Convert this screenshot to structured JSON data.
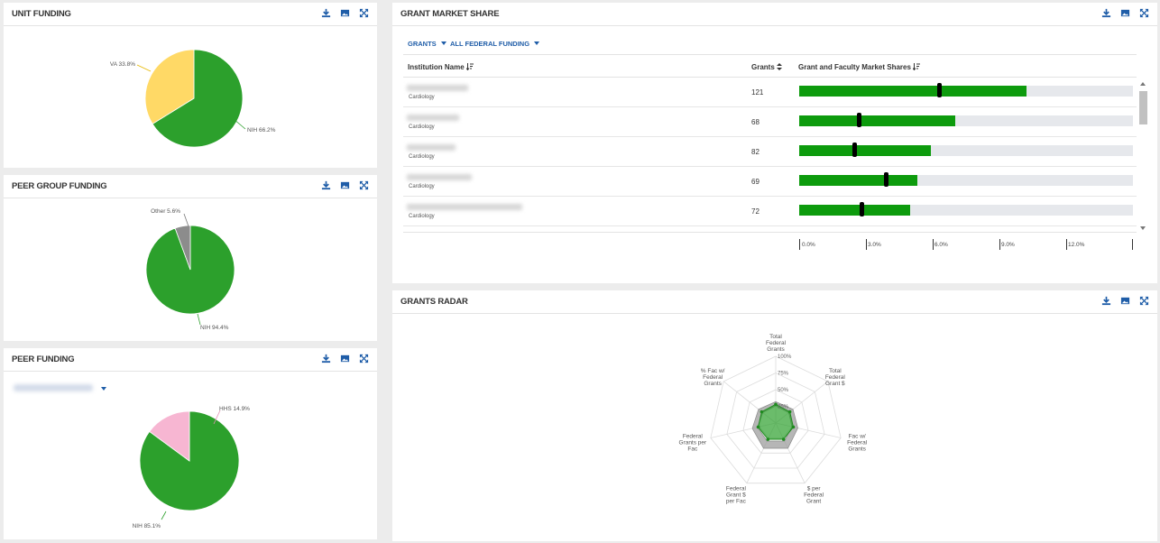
{
  "panels": {
    "unit_funding": {
      "title": "Unit Funding"
    },
    "peer_group_funding": {
      "title": "Peer Group Funding"
    },
    "peer_funding": {
      "title": "Peer Funding"
    },
    "grant_market_share": {
      "title": "Grant Market Share"
    },
    "grants_radar": {
      "title": "Grants Radar"
    }
  },
  "tool_icons": [
    "download-icon",
    "image-icon",
    "expand-icon"
  ],
  "colors": {
    "nih": "#2ca02c",
    "va": "#ffd966",
    "other": "#8c8c8c",
    "hhs": "#f7b6d2",
    "bar": "#0d9b0d",
    "link": "#1f5da8"
  },
  "unit_pie": {
    "slices": [
      {
        "label": "NIH 66.2%",
        "value": 66.2
      },
      {
        "label": "VA 33.8%",
        "value": 33.8
      }
    ]
  },
  "peer_group_pie": {
    "slices": [
      {
        "label": "NIH 94.4%",
        "value": 94.4
      },
      {
        "label": "Other 5.6%",
        "value": 5.6
      }
    ]
  },
  "peer_pie": {
    "slices": [
      {
        "label": "NIH 85.1%",
        "value": 85.1
      },
      {
        "label": "HHS 14.9%",
        "value": 14.9
      }
    ]
  },
  "market_share": {
    "filters": {
      "metric": "Grants",
      "funding": "All Federal Funding"
    },
    "columns": {
      "institution": "Institution Name",
      "grants": "Grants",
      "share": "Grant and Faculty Market Shares"
    },
    "axis_ticks": [
      "0.0%",
      "3.0%",
      "6.0%",
      "9.0%",
      "12.0%"
    ],
    "axis_max_pct": 15,
    "rows": [
      {
        "department": "Cardiology",
        "grants": "121",
        "grant_share_pct": 10.2,
        "faculty_share_pct": 6.3
      },
      {
        "department": "Cardiology",
        "grants": "68",
        "grant_share_pct": 7.0,
        "faculty_share_pct": 2.7
      },
      {
        "department": "Cardiology",
        "grants": "82",
        "grant_share_pct": 5.9,
        "faculty_share_pct": 2.5
      },
      {
        "department": "Cardiology",
        "grants": "69",
        "grant_share_pct": 5.3,
        "faculty_share_pct": 3.9
      },
      {
        "department": "Cardiology",
        "grants": "72",
        "grant_share_pct": 5.0,
        "faculty_share_pct": 2.8
      }
    ]
  },
  "radar": {
    "axes": [
      [
        "Total",
        "Federal",
        "Grants"
      ],
      [
        "Total",
        "Federal",
        "Grant $"
      ],
      [
        "Fac w/",
        "Federal",
        "Grants"
      ],
      [
        "$ per",
        "Federal",
        "Grant"
      ],
      [
        "Federal",
        "Grant $",
        "per Fac"
      ],
      [
        "Federal",
        "Grants per",
        "Fac"
      ],
      [
        "% Fac w/",
        "Federal",
        "Grants"
      ]
    ],
    "ring_labels": [
      "25%",
      "50%",
      "75%",
      "100%"
    ],
    "unit_values": [
      0.28,
      0.27,
      0.27,
      0.27,
      0.27,
      0.27,
      0.27
    ],
    "peer_range_min": [
      0.26,
      0.25,
      0.25,
      0.3,
      0.3,
      0.28,
      0.25
    ],
    "peer_range_max": [
      0.32,
      0.33,
      0.34,
      0.42,
      0.42,
      0.36,
      0.33
    ]
  }
}
